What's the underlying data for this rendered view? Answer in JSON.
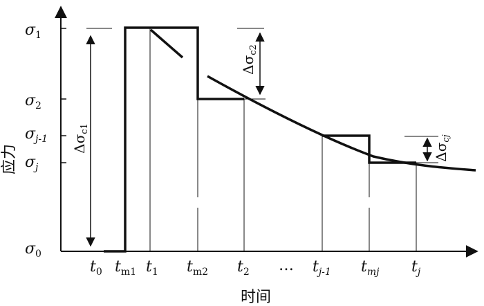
{
  "axes": {
    "y_label": "应力",
    "x_label": "时间"
  },
  "y_ticks": [
    {
      "id": "s1",
      "sym": "σ",
      "sub": "1"
    },
    {
      "id": "s2",
      "sym": "σ",
      "sub": "2"
    },
    {
      "id": "sj1",
      "sym": "σ",
      "sub": "j-1"
    },
    {
      "id": "sj",
      "sym": "σ",
      "sub": "j"
    },
    {
      "id": "s0",
      "sym": "σ",
      "sub": "0"
    }
  ],
  "x_ticks": [
    {
      "id": "t0",
      "sym": "t",
      "sub": "0"
    },
    {
      "id": "tm1",
      "sym": "t",
      "sub": "m1"
    },
    {
      "id": "t1",
      "sym": "t",
      "sub": "1"
    },
    {
      "id": "tm2",
      "sym": "t",
      "sub": "m2"
    },
    {
      "id": "t2",
      "sym": "t",
      "sub": "2"
    },
    {
      "id": "dots",
      "sym": "…",
      "sub": ""
    },
    {
      "id": "tj1",
      "sym": "t",
      "sub": "j-1"
    },
    {
      "id": "tmj",
      "sym": "t",
      "sub": "mj"
    },
    {
      "id": "tj",
      "sym": "t",
      "sub": "j"
    }
  ],
  "annotations": {
    "dsc1": {
      "sym": "Δσ",
      "sub": "c1"
    },
    "dsc2": {
      "sym": "Δσ",
      "sub": "c2"
    },
    "dscj": {
      "sym": "Δσ",
      "sub": "cj"
    }
  }
}
